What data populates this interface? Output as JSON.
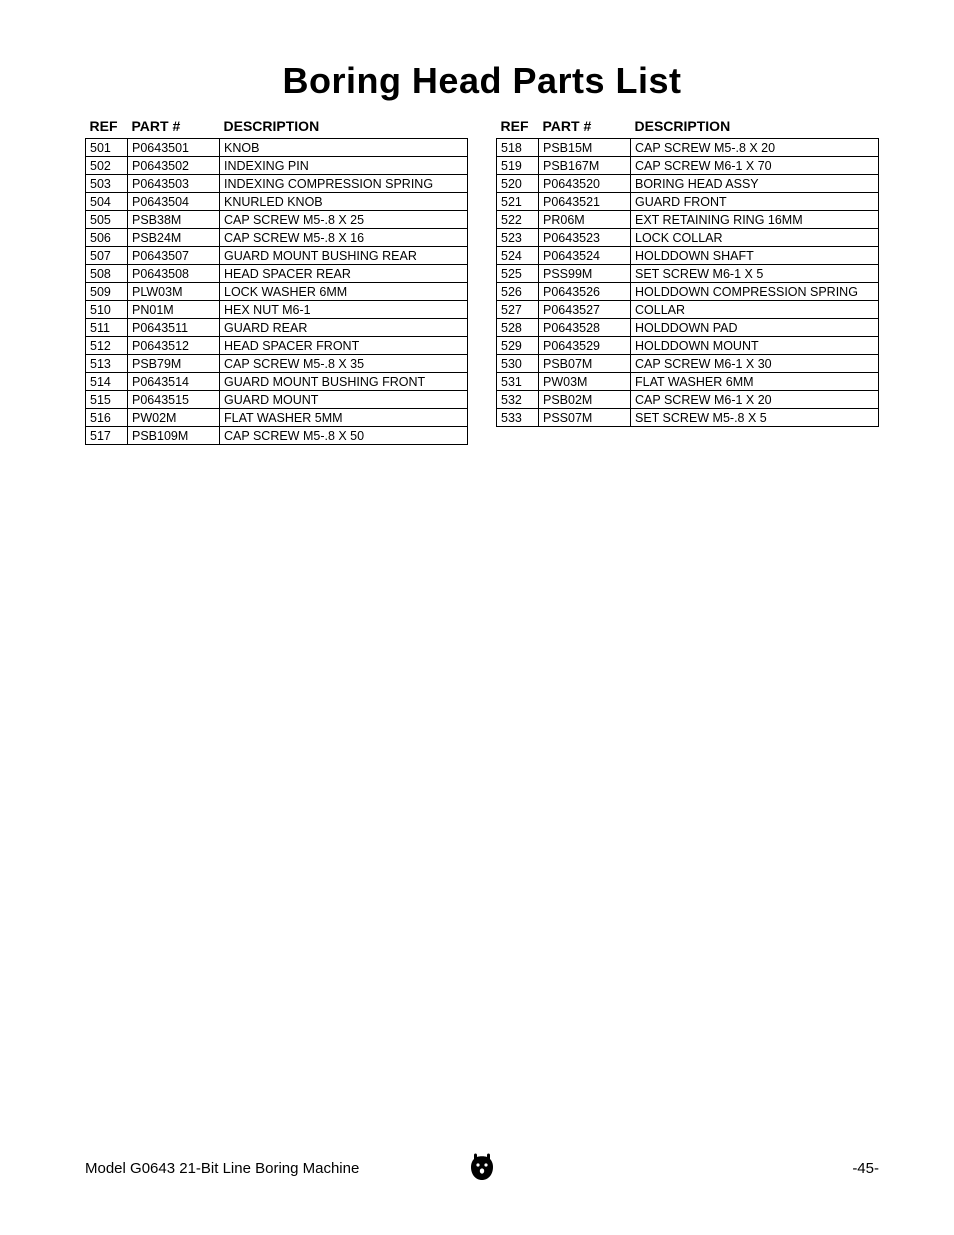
{
  "title": "Boring Head Parts List",
  "headers": {
    "ref": "REF",
    "part": "PART #",
    "desc": "DESCRIPTION"
  },
  "left_rows": [
    {
      "ref": "501",
      "part": "P0643501",
      "desc": "KNOB"
    },
    {
      "ref": "502",
      "part": "P0643502",
      "desc": "INDEXING PIN"
    },
    {
      "ref": "503",
      "part": "P0643503",
      "desc": "INDEXING COMPRESSION SPRING"
    },
    {
      "ref": "504",
      "part": "P0643504",
      "desc": "KNURLED KNOB"
    },
    {
      "ref": "505",
      "part": "PSB38M",
      "desc": "CAP SCREW M5-.8 X 25"
    },
    {
      "ref": "506",
      "part": "PSB24M",
      "desc": "CAP SCREW M5-.8 X 16"
    },
    {
      "ref": "507",
      "part": "P0643507",
      "desc": "GUARD MOUNT BUSHING REAR"
    },
    {
      "ref": "508",
      "part": "P0643508",
      "desc": "HEAD SPACER REAR"
    },
    {
      "ref": "509",
      "part": "PLW03M",
      "desc": "LOCK WASHER 6MM"
    },
    {
      "ref": "510",
      "part": "PN01M",
      "desc": "HEX NUT M6-1"
    },
    {
      "ref": "511",
      "part": "P0643511",
      "desc": "GUARD REAR"
    },
    {
      "ref": "512",
      "part": "P0643512",
      "desc": "HEAD SPACER FRONT"
    },
    {
      "ref": "513",
      "part": "PSB79M",
      "desc": "CAP SCREW M5-.8 X 35"
    },
    {
      "ref": "514",
      "part": "P0643514",
      "desc": "GUARD MOUNT BUSHING FRONT"
    },
    {
      "ref": "515",
      "part": "P0643515",
      "desc": "GUARD MOUNT"
    },
    {
      "ref": "516",
      "part": "PW02M",
      "desc": "FLAT WASHER 5MM"
    },
    {
      "ref": "517",
      "part": "PSB109M",
      "desc": "CAP SCREW M5-.8 X 50"
    }
  ],
  "right_rows": [
    {
      "ref": "518",
      "part": "PSB15M",
      "desc": "CAP SCREW M5-.8 X 20"
    },
    {
      "ref": "519",
      "part": "PSB167M",
      "desc": "CAP SCREW M6-1 X 70"
    },
    {
      "ref": "520",
      "part": "P0643520",
      "desc": "BORING HEAD ASSY"
    },
    {
      "ref": "521",
      "part": "P0643521",
      "desc": "GUARD FRONT"
    },
    {
      "ref": "522",
      "part": "PR06M",
      "desc": "EXT RETAINING RING 16MM"
    },
    {
      "ref": "523",
      "part": "P0643523",
      "desc": "LOCK COLLAR"
    },
    {
      "ref": "524",
      "part": "P0643524",
      "desc": "HOLDDOWN SHAFT"
    },
    {
      "ref": "525",
      "part": "PSS99M",
      "desc": "SET SCREW M6-1 X 5"
    },
    {
      "ref": "526",
      "part": "P0643526",
      "desc": "HOLDDOWN COMPRESSION SPRING"
    },
    {
      "ref": "527",
      "part": "P0643527",
      "desc": "COLLAR"
    },
    {
      "ref": "528",
      "part": "P0643528",
      "desc": "HOLDDOWN PAD"
    },
    {
      "ref": "529",
      "part": "P0643529",
      "desc": "HOLDDOWN MOUNT"
    },
    {
      "ref": "530",
      "part": "PSB07M",
      "desc": "CAP SCREW M6-1 X 30"
    },
    {
      "ref": "531",
      "part": "PW03M",
      "desc": "FLAT WASHER 6MM"
    },
    {
      "ref": "532",
      "part": "PSB02M",
      "desc": "CAP SCREW M6-1 X 20"
    },
    {
      "ref": "533",
      "part": "PSS07M",
      "desc": "SET SCREW M5-.8 X 5"
    }
  ],
  "footer": {
    "left": "Model G0643  21-Bit Line Boring Machine",
    "right": "-45-"
  },
  "style": {
    "title_fontsize": 36,
    "header_fontsize": 14,
    "cell_fontsize": 12.5,
    "footer_fontsize": 15,
    "border_color": "#000000",
    "background_color": "#ffffff",
    "text_color": "#000000",
    "col_widths": {
      "ref": 42,
      "part": 92
    }
  }
}
